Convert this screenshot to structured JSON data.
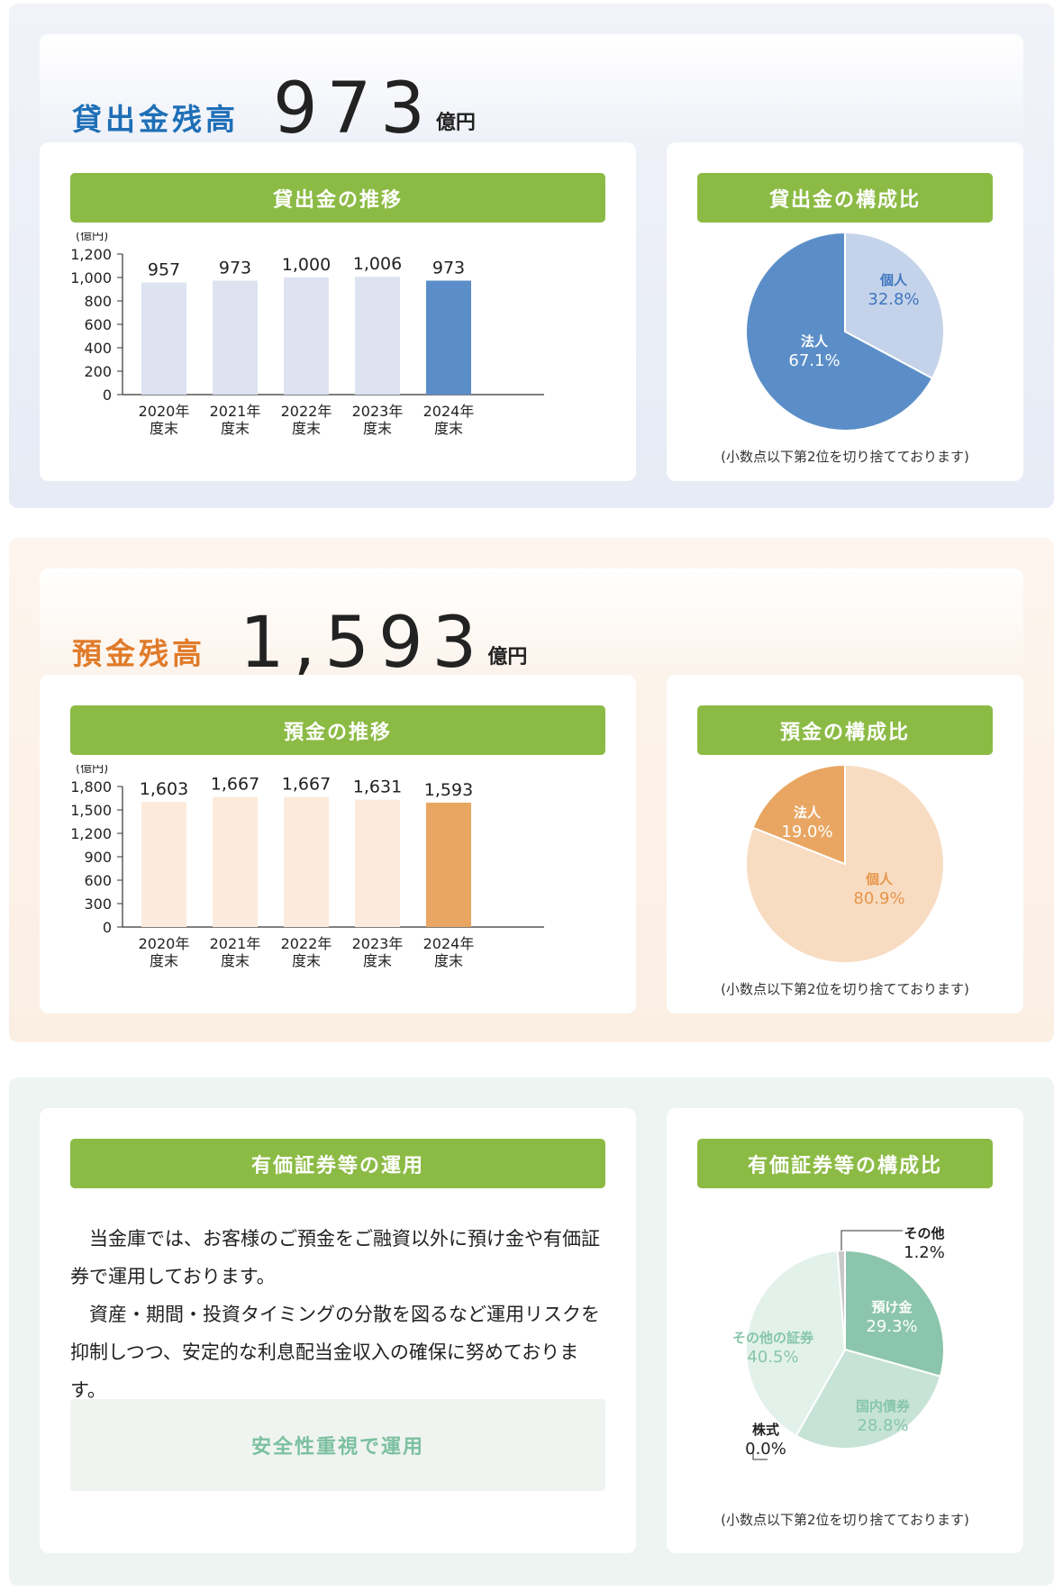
{
  "loan": {
    "label": "貸出金残高",
    "value": "973",
    "unit": "億円",
    "label_color": "#1f6fb7",
    "bar_title": "貸出金の推移",
    "pie_title": "貸出金の構成比",
    "pie_note": "(小数点以下第2位を切り捨てております)"
  },
  "deposit": {
    "label": "預金残高",
    "value": "1,593",
    "unit": "億円",
    "label_color": "#e07b2a",
    "bar_title": "預金の推移",
    "pie_title": "預金の構成比",
    "pie_note": "(小数点以下第2位を切り捨てております)"
  },
  "securities": {
    "title": "有価証券等の運用",
    "paragraphs": [
      "当金庫では、お客様のご預金をご融資以外に預け金や有価証券で運用しております。",
      "資産・期間・投資タイミングの分散を図るなど運用リスクを抑制しつつ、安定的な利息配当金収入の確保に努めております。"
    ],
    "callout": "安全性重視で運用",
    "pie_title": "有価証券等の構成比",
    "pie_note": "(小数点以下第2位を切り捨てております)"
  },
  "chart_data": [
    {
      "type": "bar",
      "title": "貸出金の推移",
      "ylabel": "(億円)",
      "categories": [
        "2020年\n度末",
        "2021年\n度末",
        "2022年\n度末",
        "2023年\n度末",
        "2024年\n度末"
      ],
      "values": [
        957,
        973,
        1000,
        1006,
        973
      ],
      "value_labels": [
        "957",
        "973",
        "1,000",
        "1,006",
        "973"
      ],
      "ylim": [
        0,
        1200
      ],
      "yticks": [
        "0",
        "200",
        "400",
        "600",
        "800",
        "1,000",
        "1,200"
      ],
      "bar_color": "#dde3f0",
      "highlight_color": "#5b8ec8"
    },
    {
      "type": "pie",
      "title": "貸出金の構成比",
      "slices": [
        {
          "label": "個人",
          "value": 32.8,
          "value_label": "32.8%",
          "color": "#c5d3ea",
          "text_color": "#3e76bf"
        },
        {
          "label": "法人",
          "value": 67.1,
          "value_label": "67.1%",
          "color": "#5b8ec8",
          "text_color": "#ffffff"
        }
      ]
    },
    {
      "type": "bar",
      "title": "預金の推移",
      "ylabel": "(億円)",
      "categories": [
        "2020年\n度末",
        "2021年\n度末",
        "2022年\n度末",
        "2023年\n度末",
        "2024年\n度末"
      ],
      "values": [
        1603,
        1667,
        1667,
        1631,
        1593
      ],
      "value_labels": [
        "1,603",
        "1,667",
        "1,667",
        "1,631",
        "1,593"
      ],
      "ylim": [
        0,
        1800
      ],
      "yticks": [
        "0",
        "300",
        "600",
        "900",
        "1,200",
        "1,500",
        "1,800"
      ],
      "bar_color": "#fcebdc",
      "highlight_color": "#e8a662"
    },
    {
      "type": "pie",
      "title": "預金の構成比",
      "slices": [
        {
          "label": "個人",
          "value": 80.9,
          "value_label": "80.9%",
          "color": "#f8dcc2",
          "text_color": "#e6954a"
        },
        {
          "label": "法人",
          "value": 19.0,
          "value_label": "19.0%",
          "color": "#e8a662",
          "text_color": "#ffffff"
        }
      ]
    },
    {
      "type": "pie",
      "title": "有価証券等の構成比",
      "slices": [
        {
          "label": "預け金",
          "value": 29.3,
          "value_label": "29.3%",
          "color": "#8cc5ad",
          "text_color": "#ffffff"
        },
        {
          "label": "国内債券",
          "value": 28.8,
          "value_label": "28.8%",
          "color": "#c7e3d7",
          "text_color": "#86c6aa"
        },
        {
          "label": "株式",
          "value": 0.0,
          "value_label": "0.0%",
          "color": "#c7e3d7",
          "text_color": "#222222"
        },
        {
          "label": "その他の証券",
          "value": 40.5,
          "value_label": "40.5%",
          "color": "#e3f1eb",
          "text_color": "#86c6aa"
        },
        {
          "label": "その他",
          "value": 1.2,
          "value_label": "1.2%",
          "color": "#c8c8c8",
          "text_color": "#222222"
        }
      ]
    }
  ]
}
